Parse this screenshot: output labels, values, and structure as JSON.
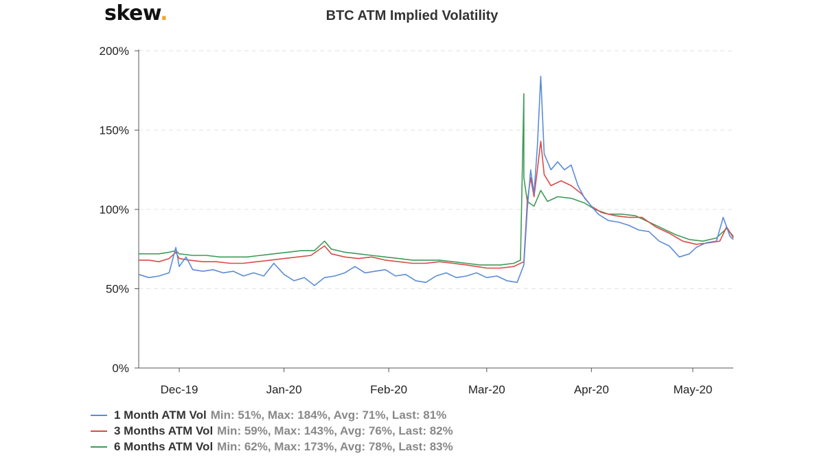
{
  "brand": {
    "name": "skew",
    "dot": "."
  },
  "chart_data": {
    "type": "line",
    "title": "BTC ATM Implied Volatility",
    "xlabel": "",
    "ylabel": "",
    "x_range": [
      "2019-11-19",
      "2020-05-13"
    ],
    "ylim": [
      0,
      200
    ],
    "y_ticks": [
      "0%",
      "50%",
      "100%",
      "150%",
      "200%"
    ],
    "y_tick_values": [
      0,
      50,
      100,
      150,
      200
    ],
    "x_ticks": [
      {
        "label": "Dec-19",
        "date": "2019-12-01"
      },
      {
        "label": "Jan-20",
        "date": "2020-01-01"
      },
      {
        "label": "Feb-20",
        "date": "2020-02-01"
      },
      {
        "label": "Mar-20",
        "date": "2020-03-01"
      },
      {
        "label": "Apr-20",
        "date": "2020-04-01"
      },
      {
        "label": "May-20",
        "date": "2020-05-01"
      }
    ],
    "grid": "horizontal dashed",
    "legend_position": "bottom-left",
    "series": [
      {
        "name": "1 Month ATM Vol",
        "stats": "Min: 51%, Max: 184%, Avg: 71%, Last: 81%",
        "color": "#5b8bd8",
        "points": [
          [
            "2019-11-19",
            59
          ],
          [
            "2019-11-22",
            57
          ],
          [
            "2019-11-25",
            58
          ],
          [
            "2019-11-28",
            60
          ],
          [
            "2019-11-30",
            76
          ],
          [
            "2019-12-01",
            64
          ],
          [
            "2019-12-03",
            70
          ],
          [
            "2019-12-05",
            62
          ],
          [
            "2019-12-08",
            61
          ],
          [
            "2019-12-11",
            62
          ],
          [
            "2019-12-14",
            60
          ],
          [
            "2019-12-17",
            61
          ],
          [
            "2019-12-20",
            58
          ],
          [
            "2019-12-23",
            60
          ],
          [
            "2019-12-26",
            58
          ],
          [
            "2019-12-29",
            66
          ],
          [
            "2020-01-01",
            59
          ],
          [
            "2020-01-04",
            55
          ],
          [
            "2020-01-07",
            57
          ],
          [
            "2020-01-10",
            52
          ],
          [
            "2020-01-13",
            57
          ],
          [
            "2020-01-16",
            58
          ],
          [
            "2020-01-19",
            60
          ],
          [
            "2020-01-22",
            64
          ],
          [
            "2020-01-25",
            60
          ],
          [
            "2020-01-28",
            61
          ],
          [
            "2020-01-31",
            62
          ],
          [
            "2020-02-03",
            58
          ],
          [
            "2020-02-06",
            59
          ],
          [
            "2020-02-09",
            55
          ],
          [
            "2020-02-12",
            54
          ],
          [
            "2020-02-15",
            58
          ],
          [
            "2020-02-18",
            60
          ],
          [
            "2020-02-21",
            57
          ],
          [
            "2020-02-24",
            58
          ],
          [
            "2020-02-27",
            60
          ],
          [
            "2020-03-01",
            57
          ],
          [
            "2020-03-04",
            58
          ],
          [
            "2020-03-07",
            55
          ],
          [
            "2020-03-10",
            54
          ],
          [
            "2020-03-12",
            65
          ],
          [
            "2020-03-13",
            100
          ],
          [
            "2020-03-14",
            125
          ],
          [
            "2020-03-15",
            110
          ],
          [
            "2020-03-16",
            140
          ],
          [
            "2020-03-17",
            184
          ],
          [
            "2020-03-18",
            135
          ],
          [
            "2020-03-20",
            125
          ],
          [
            "2020-03-22",
            130
          ],
          [
            "2020-03-24",
            125
          ],
          [
            "2020-03-26",
            128
          ],
          [
            "2020-03-28",
            115
          ],
          [
            "2020-03-30",
            107
          ],
          [
            "2020-04-01",
            102
          ],
          [
            "2020-04-03",
            97
          ],
          [
            "2020-04-06",
            93
          ],
          [
            "2020-04-09",
            92
          ],
          [
            "2020-04-12",
            90
          ],
          [
            "2020-04-15",
            87
          ],
          [
            "2020-04-18",
            86
          ],
          [
            "2020-04-21",
            80
          ],
          [
            "2020-04-24",
            77
          ],
          [
            "2020-04-27",
            70
          ],
          [
            "2020-04-30",
            72
          ],
          [
            "2020-05-02",
            76
          ],
          [
            "2020-05-05",
            79
          ],
          [
            "2020-05-08",
            80
          ],
          [
            "2020-05-10",
            95
          ],
          [
            "2020-05-12",
            83
          ],
          [
            "2020-05-13",
            81
          ]
        ]
      },
      {
        "name": "3 Months ATM Vol",
        "stats": "Min: 59%, Max: 143%, Avg: 76%, Last: 82%",
        "color": "#d94a45",
        "points": [
          [
            "2019-11-19",
            68
          ],
          [
            "2019-11-22",
            68
          ],
          [
            "2019-11-25",
            67
          ],
          [
            "2019-11-28",
            69
          ],
          [
            "2019-11-30",
            73
          ],
          [
            "2019-12-01",
            69
          ],
          [
            "2019-12-04",
            68
          ],
          [
            "2019-12-08",
            67
          ],
          [
            "2019-12-12",
            67
          ],
          [
            "2019-12-16",
            66
          ],
          [
            "2019-12-20",
            66
          ],
          [
            "2019-12-24",
            67
          ],
          [
            "2019-12-28",
            68
          ],
          [
            "2020-01-01",
            69
          ],
          [
            "2020-01-05",
            70
          ],
          [
            "2020-01-09",
            71
          ],
          [
            "2020-01-13",
            77
          ],
          [
            "2020-01-15",
            72
          ],
          [
            "2020-01-19",
            70
          ],
          [
            "2020-01-23",
            69
          ],
          [
            "2020-01-27",
            70
          ],
          [
            "2020-01-31",
            68
          ],
          [
            "2020-02-04",
            67
          ],
          [
            "2020-02-08",
            66
          ],
          [
            "2020-02-12",
            66
          ],
          [
            "2020-02-16",
            67
          ],
          [
            "2020-02-20",
            66
          ],
          [
            "2020-02-24",
            65
          ],
          [
            "2020-02-27",
            64
          ],
          [
            "2020-03-01",
            63
          ],
          [
            "2020-03-05",
            63
          ],
          [
            "2020-03-09",
            64
          ],
          [
            "2020-03-12",
            67
          ],
          [
            "2020-03-13",
            105
          ],
          [
            "2020-03-14",
            120
          ],
          [
            "2020-03-15",
            108
          ],
          [
            "2020-03-16",
            125
          ],
          [
            "2020-03-17",
            143
          ],
          [
            "2020-03-18",
            122
          ],
          [
            "2020-03-20",
            115
          ],
          [
            "2020-03-23",
            118
          ],
          [
            "2020-03-26",
            115
          ],
          [
            "2020-03-29",
            110
          ],
          [
            "2020-04-01",
            102
          ],
          [
            "2020-04-04",
            98
          ],
          [
            "2020-04-08",
            96
          ],
          [
            "2020-04-12",
            95
          ],
          [
            "2020-04-16",
            95
          ],
          [
            "2020-04-20",
            89
          ],
          [
            "2020-04-24",
            85
          ],
          [
            "2020-04-28",
            80
          ],
          [
            "2020-05-02",
            78
          ],
          [
            "2020-05-06",
            79
          ],
          [
            "2020-05-09",
            80
          ],
          [
            "2020-05-11",
            89
          ],
          [
            "2020-05-13",
            82
          ]
        ]
      },
      {
        "name": "6 Months ATM Vol",
        "stats": "Min: 62%, Max: 173%, Avg: 78%, Last: 83%",
        "color": "#3e9a57",
        "points": [
          [
            "2019-11-19",
            72
          ],
          [
            "2019-11-22",
            72
          ],
          [
            "2019-11-25",
            72
          ],
          [
            "2019-11-28",
            73
          ],
          [
            "2019-11-30",
            74
          ],
          [
            "2019-12-01",
            72
          ],
          [
            "2019-12-05",
            71
          ],
          [
            "2019-12-09",
            71
          ],
          [
            "2019-12-13",
            70
          ],
          [
            "2019-12-17",
            70
          ],
          [
            "2019-12-21",
            70
          ],
          [
            "2019-12-25",
            71
          ],
          [
            "2019-12-29",
            72
          ],
          [
            "2020-01-02",
            73
          ],
          [
            "2020-01-06",
            74
          ],
          [
            "2020-01-10",
            74
          ],
          [
            "2020-01-13",
            80
          ],
          [
            "2020-01-15",
            75
          ],
          [
            "2020-01-19",
            73
          ],
          [
            "2020-01-23",
            72
          ],
          [
            "2020-01-27",
            71
          ],
          [
            "2020-01-31",
            70
          ],
          [
            "2020-02-04",
            69
          ],
          [
            "2020-02-08",
            68
          ],
          [
            "2020-02-12",
            68
          ],
          [
            "2020-02-16",
            68
          ],
          [
            "2020-02-20",
            67
          ],
          [
            "2020-02-24",
            66
          ],
          [
            "2020-02-28",
            65
          ],
          [
            "2020-03-01",
            65
          ],
          [
            "2020-03-05",
            65
          ],
          [
            "2020-03-09",
            66
          ],
          [
            "2020-03-11",
            68
          ],
          [
            "2020-03-12",
            173
          ],
          [
            "2020-03-12",
            120
          ],
          [
            "2020-03-13",
            105
          ],
          [
            "2020-03-15",
            102
          ],
          [
            "2020-03-17",
            112
          ],
          [
            "2020-03-19",
            105
          ],
          [
            "2020-03-22",
            108
          ],
          [
            "2020-03-26",
            107
          ],
          [
            "2020-03-30",
            104
          ],
          [
            "2020-04-02",
            100
          ],
          [
            "2020-04-06",
            97
          ],
          [
            "2020-04-10",
            97
          ],
          [
            "2020-04-14",
            96
          ],
          [
            "2020-04-18",
            92
          ],
          [
            "2020-04-22",
            88
          ],
          [
            "2020-04-26",
            84
          ],
          [
            "2020-04-30",
            81
          ],
          [
            "2020-05-04",
            80
          ],
          [
            "2020-05-08",
            82
          ],
          [
            "2020-05-11",
            88
          ],
          [
            "2020-05-13",
            83
          ]
        ]
      }
    ]
  }
}
